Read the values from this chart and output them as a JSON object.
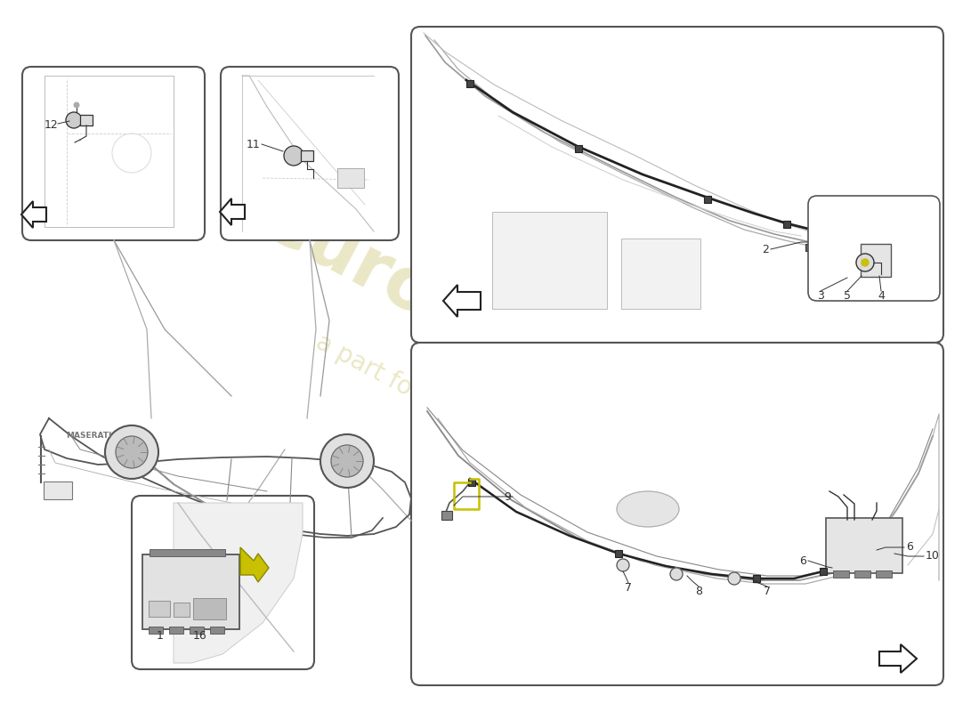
{
  "background_color": "#ffffff",
  "watermark_color": "#ddd8a0",
  "line_color": "#333333",
  "box_edge_color": "#555555",
  "arrow_color": "#222222",
  "highlight_color": "#c8c000",
  "part_labels": [
    "1",
    "2",
    "3",
    "4",
    "5",
    "6",
    "6",
    "7",
    "7",
    "8",
    "9",
    "10",
    "11",
    "12",
    "16"
  ]
}
